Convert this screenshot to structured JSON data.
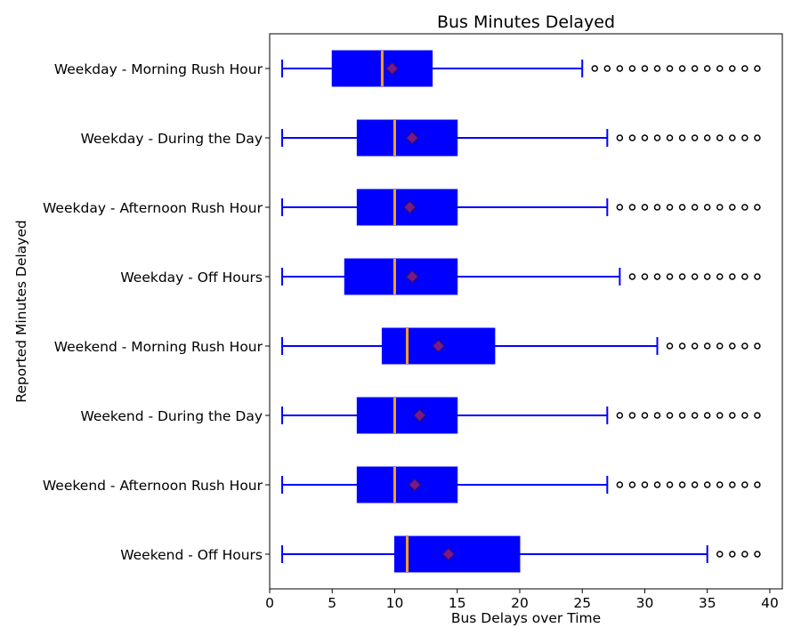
{
  "chart_data": {
    "type": "boxplot",
    "title": "Bus Minutes Delayed",
    "xlabel": "Bus Delays over Time",
    "ylabel": "Reported Minutes Delayed",
    "orientation": "horizontal",
    "xlim": [
      0,
      41
    ],
    "xticks": [
      0,
      5,
      10,
      15,
      20,
      25,
      30,
      35,
      40
    ],
    "grid": false,
    "colors": {
      "box": "#0000ff",
      "whisker": "#0000ff",
      "median": "#ff9f1c",
      "mean_fill": "#7a1a8a",
      "mean_edge": "#3a0f5a",
      "flier_edge": "#000000"
    },
    "categories": [
      "Weekday - Morning Rush Hour",
      "Weekday - During the Day",
      "Weekday - Afternoon Rush Hour",
      "Weekday - Off Hours",
      "Weekend - Morning Rush Hour",
      "Weekend - During the Day",
      "Weekend - Afternoon Rush Hour",
      "Weekend - Off Hours"
    ],
    "boxes": [
      {
        "whislo": 1,
        "q1": 5,
        "median": 9,
        "mean": 9.8,
        "q3": 13,
        "whishi": 25,
        "fliers": [
          26,
          27,
          28,
          29,
          30,
          31,
          32,
          33,
          34,
          35,
          36,
          37,
          38,
          39
        ]
      },
      {
        "whislo": 1,
        "q1": 7,
        "median": 10,
        "mean": 11.4,
        "q3": 15,
        "whishi": 27,
        "fliers": [
          28,
          29,
          30,
          31,
          32,
          33,
          34,
          35,
          36,
          37,
          38,
          39
        ]
      },
      {
        "whislo": 1,
        "q1": 7,
        "median": 10,
        "mean": 11.2,
        "q3": 15,
        "whishi": 27,
        "fliers": [
          28,
          29,
          30,
          31,
          32,
          33,
          34,
          35,
          36,
          37,
          38,
          39
        ]
      },
      {
        "whislo": 1,
        "q1": 6,
        "median": 10,
        "mean": 11.4,
        "q3": 15,
        "whishi": 28,
        "fliers": [
          29,
          30,
          31,
          32,
          33,
          34,
          35,
          36,
          37,
          38,
          39
        ]
      },
      {
        "whislo": 1,
        "q1": 9,
        "median": 11,
        "mean": 13.5,
        "q3": 18,
        "whishi": 31,
        "fliers": [
          32,
          33,
          34,
          35,
          36,
          37,
          38,
          39
        ]
      },
      {
        "whislo": 1,
        "q1": 7,
        "median": 10,
        "mean": 12.0,
        "q3": 15,
        "whishi": 27,
        "fliers": [
          28,
          29,
          30,
          31,
          32,
          33,
          34,
          35,
          36,
          37,
          38,
          39
        ]
      },
      {
        "whislo": 1,
        "q1": 7,
        "median": 10,
        "mean": 11.6,
        "q3": 15,
        "whishi": 27,
        "fliers": [
          28,
          29,
          30,
          31,
          32,
          33,
          34,
          35,
          36,
          37,
          38,
          39
        ]
      },
      {
        "whislo": 1,
        "q1": 10,
        "median": 11,
        "mean": 14.3,
        "q3": 20,
        "whishi": 35,
        "fliers": [
          36,
          37,
          38,
          39
        ]
      }
    ]
  }
}
